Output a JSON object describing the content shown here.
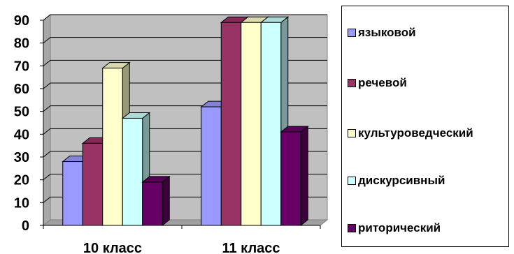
{
  "chart_data": {
    "type": "bar",
    "categories": [
      "10 класс",
      "11 класс"
    ],
    "series": [
      {
        "name": "языковой",
        "values": [
          28,
          52
        ],
        "color": "#9999ff"
      },
      {
        "name": "речевой",
        "values": [
          36,
          89
        ],
        "color": "#993366"
      },
      {
        "name": "культуроведческий",
        "values": [
          69,
          89
        ],
        "color": "#ffffcc"
      },
      {
        "name": "дискурсивный",
        "values": [
          47,
          89
        ],
        "color": "#ccffff"
      },
      {
        "name": "риторический",
        "values": [
          19,
          41
        ],
        "color": "#660066"
      }
    ],
    "title": "",
    "xlabel": "",
    "ylabel": "",
    "ylim": [
      0,
      90
    ],
    "yticks": [
      "0",
      "10",
      "20",
      "30",
      "40",
      "50",
      "60",
      "70",
      "80",
      "90"
    ],
    "grid": true,
    "legend": "right",
    "wall_color": "#c0c0c0"
  }
}
